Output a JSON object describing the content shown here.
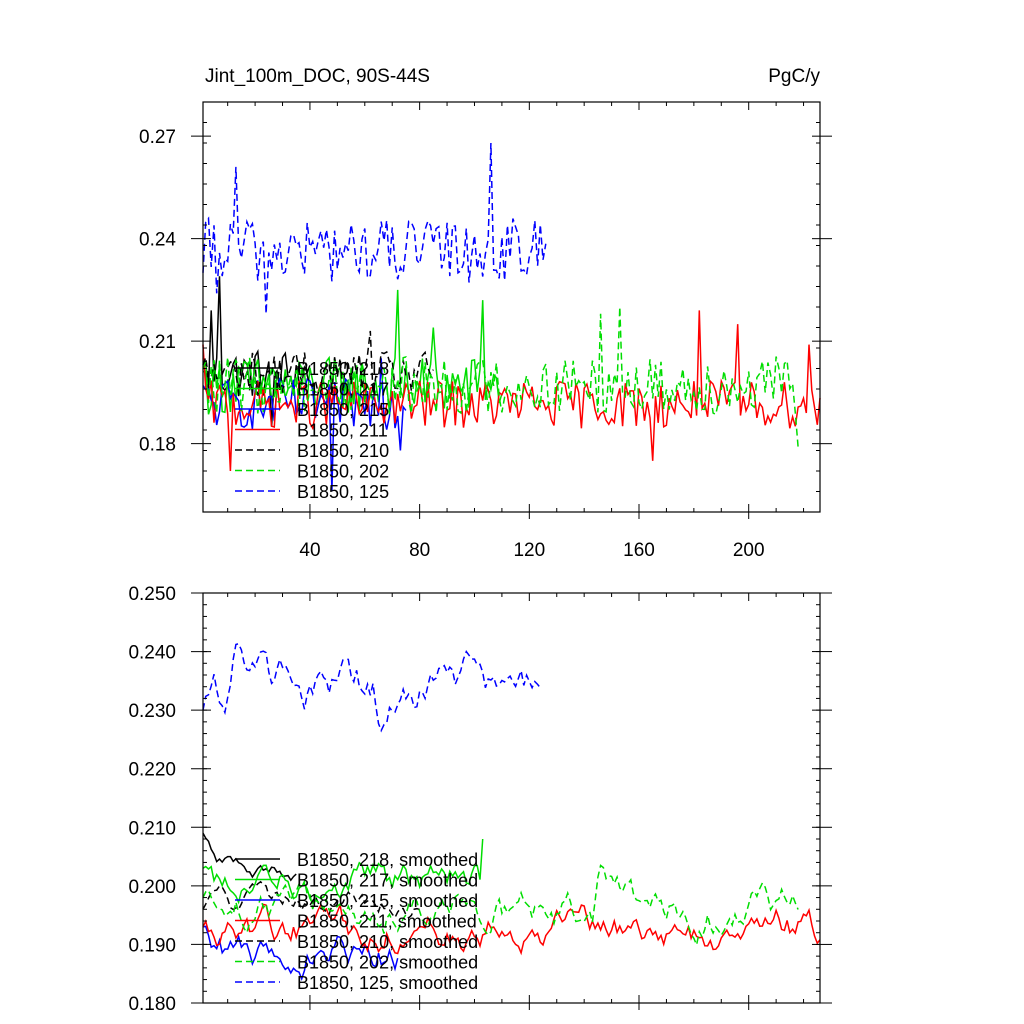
{
  "chart_data": [
    {
      "type": "line",
      "title_left": "Jint_100m_DOC, 90S-44S",
      "title_right": "PgC/y",
      "xlabel": "",
      "ylabel": "",
      "xlim": [
        1,
        226
      ],
      "ylim": [
        0.16,
        0.28
      ],
      "xticks": [
        40,
        80,
        120,
        160,
        200
      ],
      "xtick_labels": [
        "40",
        "80",
        "120",
        "160",
        "200"
      ],
      "yticks": [
        0.18,
        0.21,
        0.24,
        0.27
      ],
      "ytick_labels": [
        "0.18",
        "0.21",
        "0.24",
        "0.27"
      ],
      "legend_position": "bottom-left",
      "series": [
        {
          "name": "B1850, 218",
          "color": "#000000",
          "dash": "solid",
          "x_end": 40,
          "mean": 0.2005,
          "amp": 0.0075,
          "start": 0.205,
          "peaks": [
            [
              4,
              0.219
            ],
            [
              7,
              0.229
            ],
            [
              26,
              0.185
            ]
          ]
        },
        {
          "name": "B1850, 217",
          "color": "#00dd00",
          "dash": "solid",
          "x_end": 110,
          "mean": 0.197,
          "amp": 0.0085,
          "start": 0.201,
          "peaks": [
            [
              72,
              0.225
            ],
            [
              85,
              0.214
            ],
            [
              103,
              0.222
            ]
          ]
        },
        {
          "name": "B1850, 215",
          "color": "#0000ff",
          "dash": "solid",
          "x_end": 75,
          "mean": 0.1915,
          "amp": 0.0075,
          "start": 0.197,
          "peaks": [
            [
              48,
              0.166
            ],
            [
              66,
              0.205
            ],
            [
              73,
              0.178
            ]
          ]
        },
        {
          "name": "B1850, 211",
          "color": "#ff0000",
          "dash": "solid",
          "x_end": 226,
          "mean": 0.1915,
          "amp": 0.007,
          "start": 0.209,
          "peaks": [
            [
              11,
              0.172
            ],
            [
              165,
              0.175
            ],
            [
              182,
              0.219
            ],
            [
              196,
              0.215
            ],
            [
              222,
              0.209
            ]
          ]
        },
        {
          "name": "B1850, 210",
          "color": "#000000",
          "dash": "dashed",
          "x_end": 85,
          "mean": 0.2005,
          "amp": 0.0065,
          "start": 0.203,
          "peaks": [
            [
              62,
              0.213
            ]
          ]
        },
        {
          "name": "B1850, 202",
          "color": "#00dd00",
          "dash": "dashed",
          "x_end": 218,
          "mean": 0.197,
          "amp": 0.0085,
          "start": 0.202,
          "peaks": [
            [
              146,
              0.218
            ],
            [
              153,
              0.22
            ],
            [
              218,
              0.179
            ]
          ]
        },
        {
          "name": "B1850, 125",
          "color": "#0000ff",
          "dash": "dashed",
          "x_end": 126,
          "mean": 0.2365,
          "amp": 0.0095,
          "start": 0.23,
          "peaks": [
            [
              13,
              0.261
            ],
            [
              106,
              0.268
            ],
            [
              24,
              0.218
            ],
            [
              6,
              0.224
            ]
          ]
        }
      ]
    },
    {
      "type": "line",
      "xlim": [
        1,
        226
      ],
      "ylim": [
        0.18,
        0.25
      ],
      "xticks": [
        40,
        80,
        120,
        160,
        200
      ],
      "yticks": [
        0.18,
        0.19,
        0.2,
        0.21,
        0.22,
        0.23,
        0.24,
        0.25
      ],
      "ytick_labels": [
        "0.180",
        "0.190",
        "0.200",
        "0.210",
        "0.220",
        "0.230",
        "0.240",
        "0.250"
      ],
      "legend_position": "bottom-left",
      "series": [
        {
          "name": "B1850, 218, smoothed",
          "color": "#000000",
          "dash": "solid",
          "x_end": 35,
          "mean": 0.2025,
          "amp": 0.0016,
          "start": 0.209
        },
        {
          "name": "B1850, 217, smoothed",
          "color": "#00dd00",
          "dash": "solid",
          "x_end": 103,
          "mean": 0.2005,
          "amp": 0.003,
          "start": 0.203,
          "end": 0.208
        },
        {
          "name": "B1850, 215, smoothed",
          "color": "#0000ff",
          "dash": "solid",
          "x_end": 72,
          "mean": 0.1885,
          "amp": 0.003,
          "start": 0.193
        },
        {
          "name": "B1850, 211, smoothed",
          "color": "#ff0000",
          "dash": "solid",
          "x_end": 226,
          "mean": 0.1925,
          "amp": 0.003,
          "start": 0.193
        },
        {
          "name": "B1850, 210, smoothed",
          "color": "#000000",
          "dash": "dashed",
          "x_end": 80,
          "mean": 0.1965,
          "amp": 0.002,
          "start": 0.196
        },
        {
          "name": "B1850, 202, smoothed",
          "color": "#00dd00",
          "dash": "dashed",
          "x_end": 218,
          "mean": 0.1955,
          "amp": 0.0032,
          "start": 0.198,
          "peaks": [
            [
              146,
              0.2035
            ],
            [
              205,
              0.2005
            ]
          ]
        },
        {
          "name": "B1850, 125, smoothed",
          "color": "#0000ff",
          "dash": "dashed",
          "x_end": 124,
          "mean": 0.2335,
          "amp": 0.0035,
          "start": 0.23,
          "peaks": [
            [
              13,
              0.2412
            ],
            [
              97,
              0.24
            ],
            [
              66,
              0.2265
            ]
          ]
        }
      ]
    }
  ]
}
